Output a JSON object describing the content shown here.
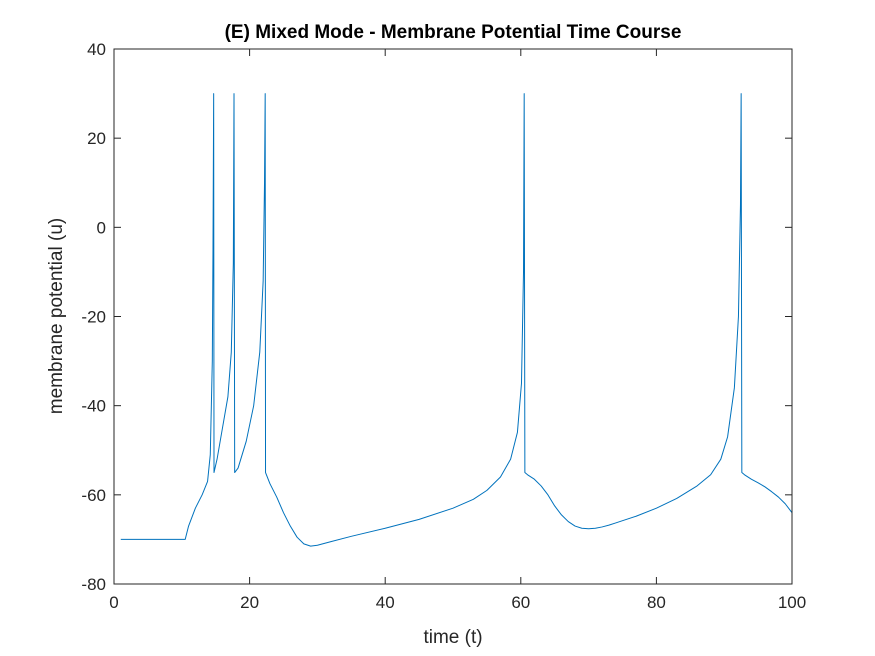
{
  "chart_data": {
    "type": "line",
    "title": "(E) Mixed Mode - Membrane Potential Time Course",
    "xlabel": "time (t)",
    "ylabel": "membrane potential (u)",
    "xlim": [
      0,
      100
    ],
    "ylim": [
      -80,
      40
    ],
    "xticks": [
      0,
      20,
      40,
      60,
      80,
      100
    ],
    "yticks": [
      40,
      20,
      0,
      -20,
      -40,
      -60,
      -80
    ],
    "grid": false,
    "series_color": "#0072BD",
    "series": [
      {
        "x": [
          1,
          10.5,
          11,
          12,
          13,
          13.8,
          14.2,
          14.5,
          14.6,
          14.7,
          14.75,
          15.2,
          16,
          16.8,
          17.3,
          17.6,
          17.7,
          17.8,
          18.3,
          19.5,
          20.6,
          21.5,
          22,
          22.2,
          22.3,
          22.35,
          23,
          24,
          25,
          26,
          27,
          28,
          29,
          30,
          32,
          35,
          40,
          45,
          50,
          53,
          55,
          57,
          58.5,
          59.5,
          60.1,
          60.4,
          60.5,
          60.6,
          61,
          62,
          63,
          64,
          65,
          66,
          67,
          68,
          69,
          70,
          71,
          72,
          73,
          74,
          75,
          77,
          80,
          83,
          86,
          88,
          89.5,
          90.5,
          91.5,
          92.1,
          92.4,
          92.5,
          92.6,
          93,
          94,
          95,
          96,
          97,
          98,
          99,
          100
        ],
        "y": [
          -70,
          -70,
          -67,
          -63,
          -60,
          -57,
          -51,
          -30,
          -5,
          30,
          -55,
          -52,
          -45,
          -38,
          -28,
          -8,
          30,
          -55,
          -54,
          -48,
          -40,
          -28,
          -12,
          10,
          30,
          -55,
          -57.5,
          -60.5,
          -64,
          -67,
          -69.5,
          -71,
          -71.5,
          -71.3,
          -70.5,
          -69.3,
          -67.5,
          -65.5,
          -63,
          -61,
          -59,
          -56,
          -52,
          -46,
          -35,
          -10,
          30,
          -55,
          -55.5,
          -56.5,
          -58,
          -60,
          -62.5,
          -64.5,
          -66,
          -67,
          -67.5,
          -67.6,
          -67.5,
          -67.2,
          -66.8,
          -66.3,
          -65.8,
          -64.8,
          -63,
          -60.8,
          -58,
          -55.5,
          -52,
          -47,
          -36,
          -20,
          5,
          30,
          -55,
          -55.5,
          -56.5,
          -57.3,
          -58.2,
          -59.3,
          -60.5,
          -62,
          -64
        ]
      }
    ]
  }
}
